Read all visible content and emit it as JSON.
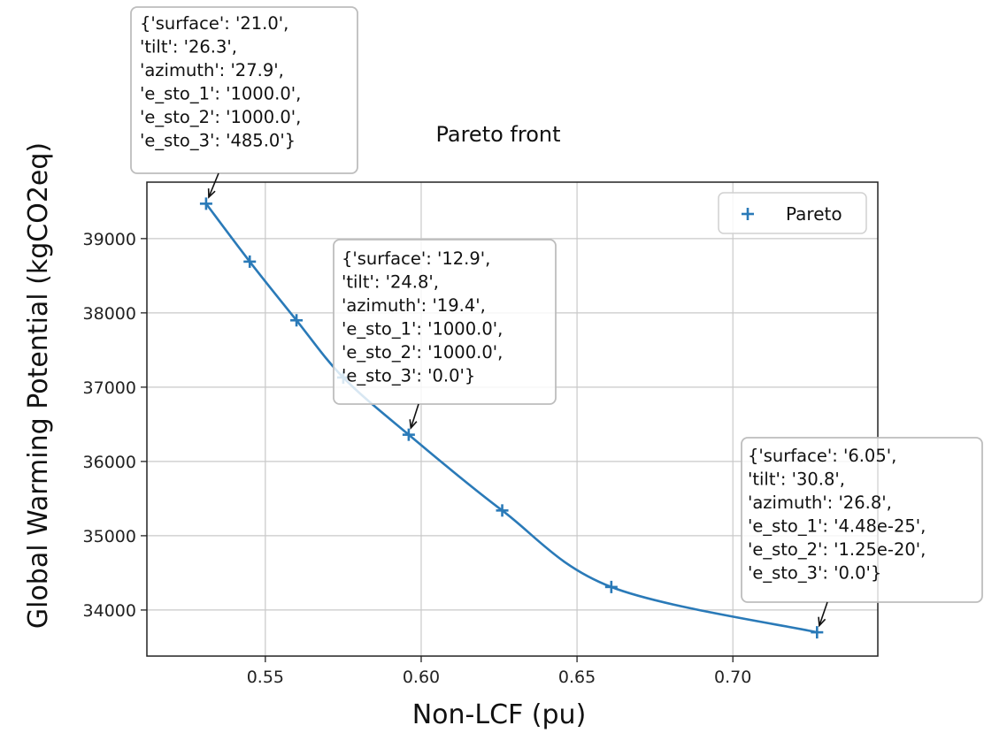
{
  "chart_data": {
    "type": "line",
    "title": "Pareto front",
    "xlabel": "Non-LCF (pu)",
    "ylabel": "Global Warming Potential (kgCO2eq)",
    "xlim": [
      0.512,
      0.7465
    ],
    "ylim": [
      33380,
      39760
    ],
    "xticks": [
      "0.55",
      "0.60",
      "0.65",
      "0.70"
    ],
    "yticks": [
      "34000",
      "35000",
      "36000",
      "37000",
      "38000",
      "39000"
    ],
    "grid": true,
    "legend_position": "top-right",
    "series": [
      {
        "name": "Pareto",
        "color": "#2a7ab8",
        "marker": "+",
        "x": [
          0.531,
          0.545,
          0.56,
          0.575,
          0.596,
          0.626,
          0.661,
          0.727
        ],
        "y": [
          39470,
          38690,
          37900,
          37130,
          36360,
          35340,
          34310,
          33700
        ]
      }
    ],
    "annotations": [
      {
        "point_index": 0,
        "lines": [
          "{'surface': '21.0',",
          " 'tilt': '26.3',",
          " 'azimuth': '27.9',",
          " 'e_sto_1': '1000.0',",
          " 'e_sto_2': '1000.0',",
          " 'e_sto_3': '485.0'}"
        ]
      },
      {
        "point_index": 4,
        "lines": [
          "{'surface': '12.9',",
          " 'tilt': '24.8',",
          " 'azimuth': '19.4',",
          " 'e_sto_1': '1000.0',",
          " 'e_sto_2': '1000.0',",
          " 'e_sto_3': '0.0'}"
        ]
      },
      {
        "point_index": 7,
        "lines": [
          "{'surface': '6.05',",
          " 'tilt': '30.8',",
          " 'azimuth': '26.8',",
          " 'e_sto_1': '4.48e-25',",
          " 'e_sto_2': '1.25e-20',",
          " 'e_sto_3': '0.0'}"
        ]
      }
    ]
  }
}
